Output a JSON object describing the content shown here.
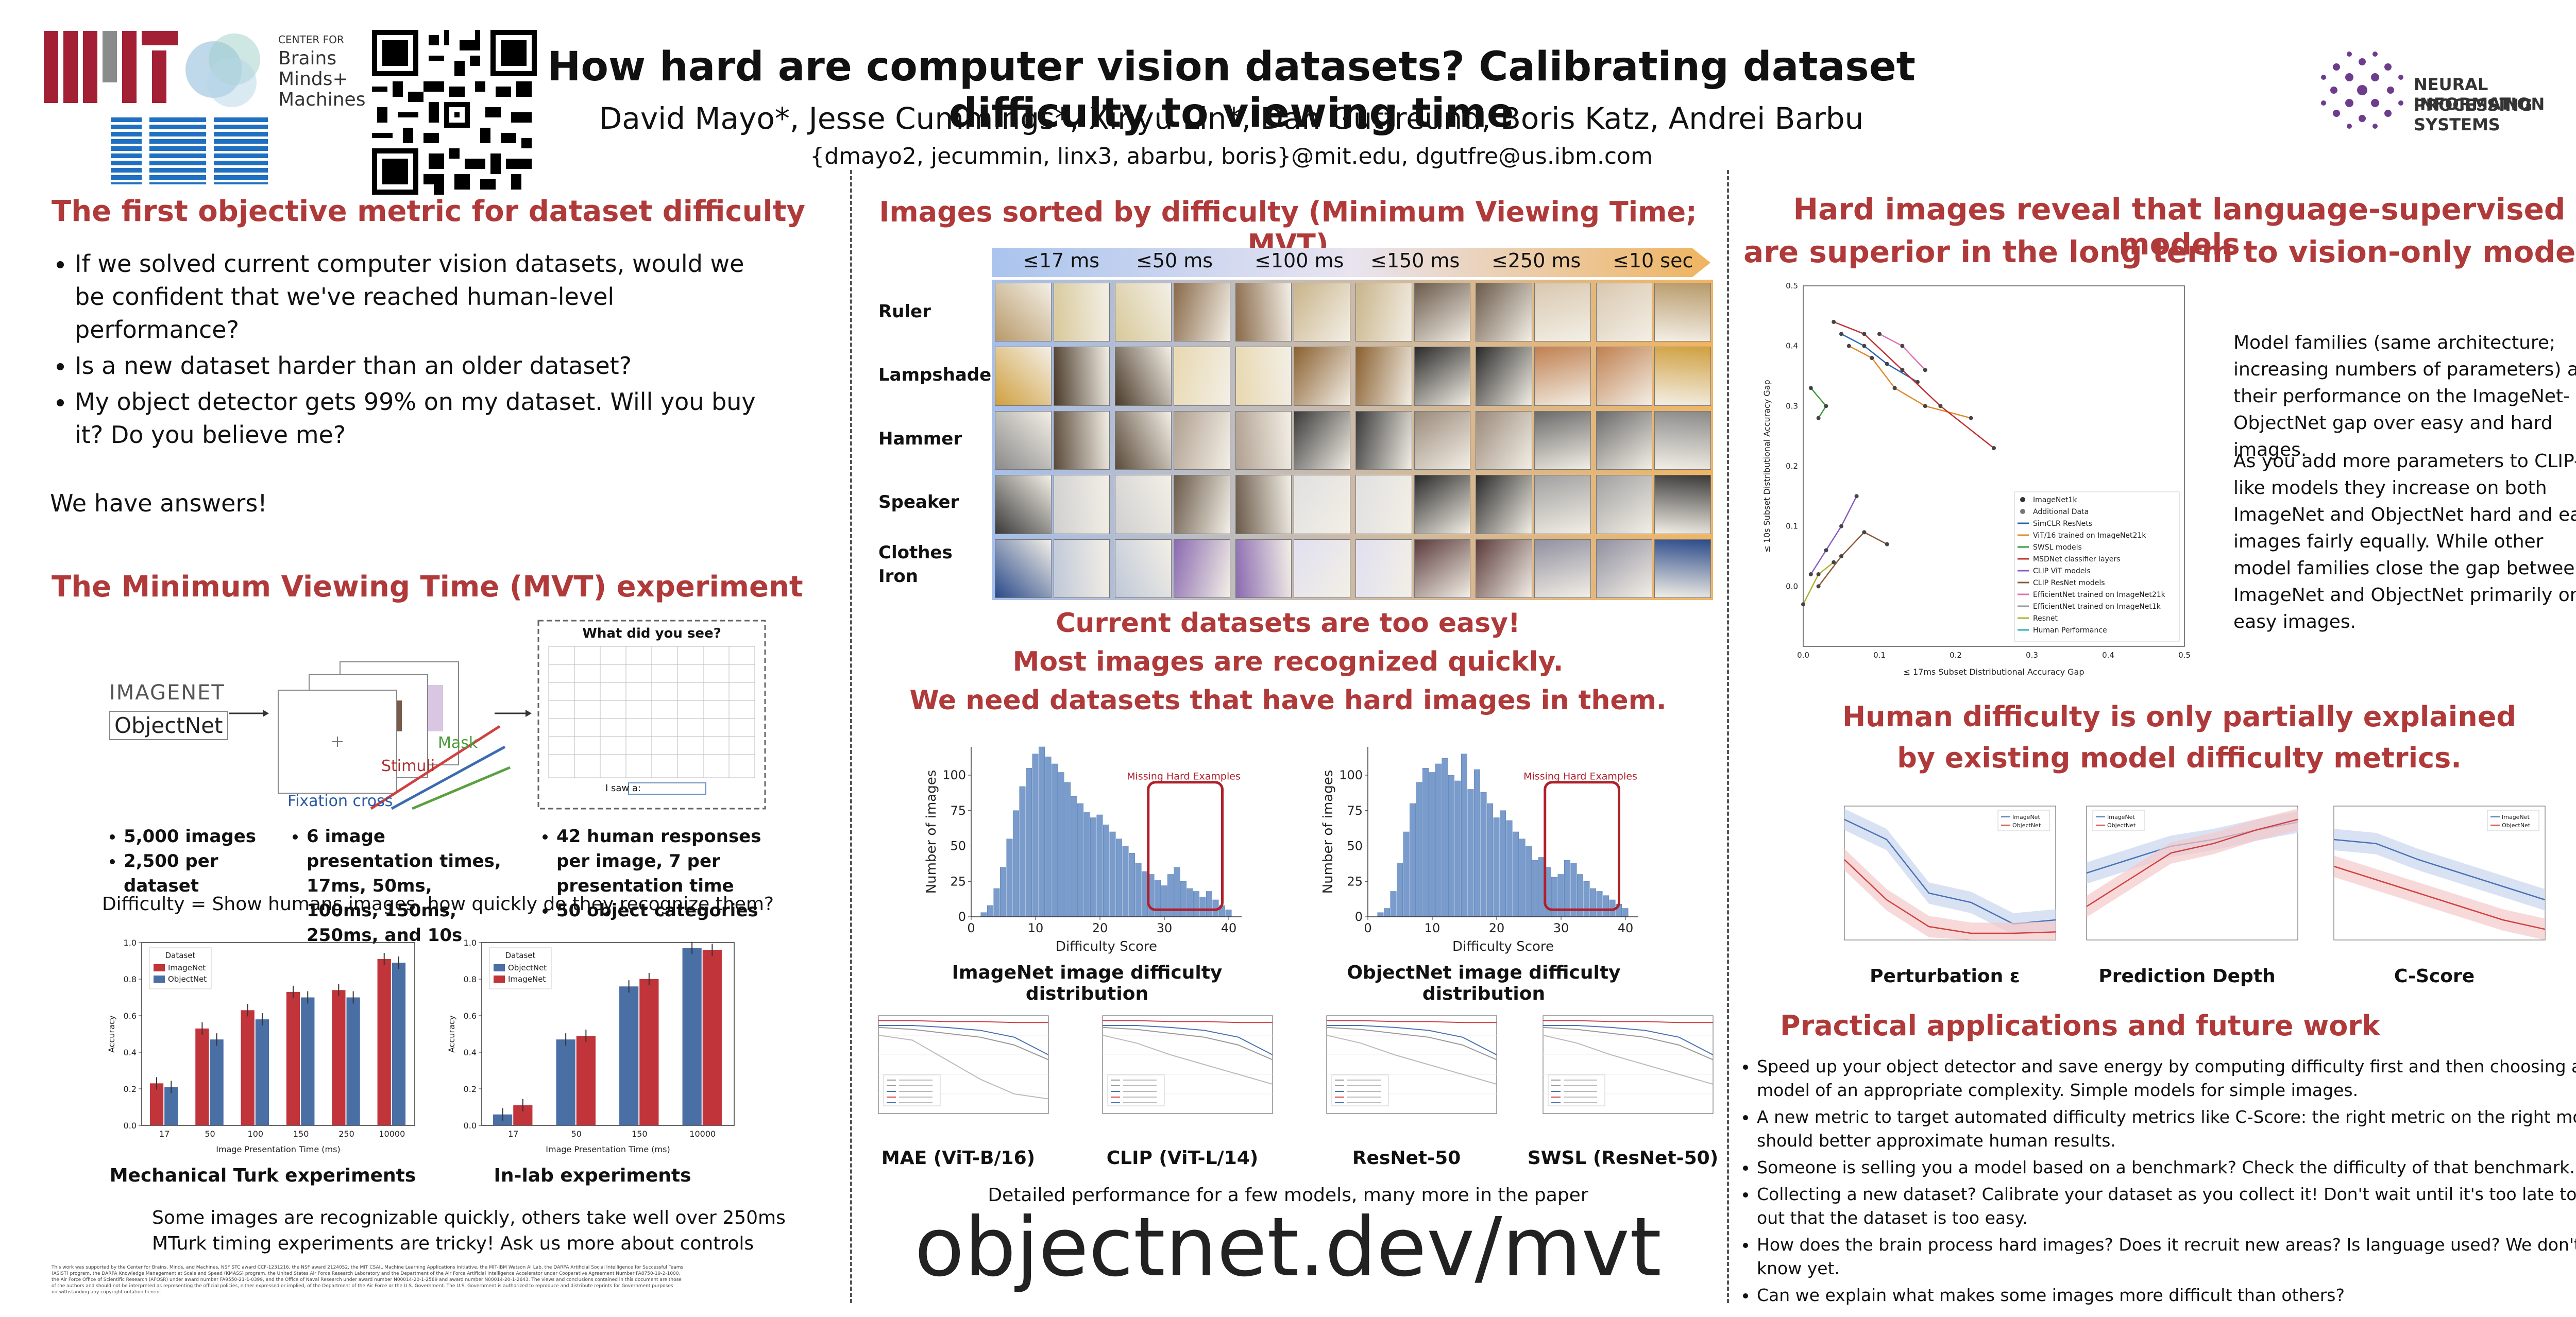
{
  "header": {
    "title": "How hard are computer vision datasets? Calibrating dataset difficulty to viewing time",
    "authors": "David Mayo*, Jesse Cummings*, Xinyu Lin*, Dan Gutfreund, Boris Katz, Andrei Barbu",
    "emails": "{dmayo2, jecummin, linx3, abarbu, boris}@mit.edu, dgutfre@us.ibm.com",
    "cbmm_lines": [
      "CENTER FOR",
      "Brains",
      "Minds+",
      "Machines"
    ],
    "mit_logo": "MIT",
    "ibm_logo": "IBM",
    "neurips_lines": [
      "NEURAL INFORMATION",
      "PROCESSING SYSTEMS"
    ]
  },
  "left": {
    "sec1_title": "The first objective metric for dataset difficulty",
    "bullets": [
      "If we solved current computer vision datasets, would we be confident that we've reached human-level performance?",
      "Is a new dataset harder than an older dataset?",
      "My object detector gets 99% on my dataset. Will you buy it? Do you believe me?"
    ],
    "answers": "We have answers!",
    "sec2_title": "The Minimum Viewing Time (MVT) experiment",
    "diagram": {
      "imagenet": "IMAGENET",
      "objectnet": "ObjectNet",
      "fixation": "Fixation cross",
      "stimuli": "Stimuli",
      "mask": "Mask",
      "question": "What did you see?",
      "type_prompt": "I saw a:"
    },
    "stats_col1": [
      "5,000 images",
      "2,500 per dataset"
    ],
    "stats_col2": [
      "6 image presentation times, 17ms, 50ms, 100ms, 150ms, 250ms, and 10s"
    ],
    "stats_col3": [
      "42 human responses per image, 7 per presentation time",
      "50 object categories"
    ],
    "difficulty_def": "Difficulty = Show humans images, how quickly do they recognize them?",
    "mturk_caption": "Mechanical Turk experiments",
    "inlab_caption": "In-lab experiments",
    "bottom_note1": "Some images are recognizable quickly, others take well over 250ms",
    "bottom_note2": "MTurk timing experiments are tricky! Ask us more about controls",
    "footnote": "This work was supported by the Center for Brains, Minds, and Machines, NSF STC award CCF-1231216, the NSF award 2124052, the MIT CSAIL Machine Learning Applications Initiative, the MIT-IBM Watson AI Lab, the DARPA Artificial Social Intelligence for Successful Teams (ASIST) program, the DARPA Knowledge Management at Scale and Speed (KMASS) program, the United States Air Force Research Laboratory and the Department of the Air Force Artificial Intelligence Accelerator under Cooperative Agreement Number FA8750-19-2-1000, the Air Force Office of Scientific Research (AFOSR) under award number FA9550-21-1-0399, and the Office of Naval Research under award number N00014-20-1-2589 and award number N00014-20-1-2643. The views and conclusions contained in this document are those of the authors and should not be interpreted as representing the official policies, either expressed or implied, of the Department of the Air Force or the U.S. Government. The U.S. Government is authorized to reproduce and distribute reprints for Government purposes notwithstanding any copyright notation herein."
  },
  "middle": {
    "sec_title": "Images sorted by difficulty (Minimum Viewing Time; MVT)",
    "mvt_labels": [
      "≤17 ms",
      "≤50 ms",
      "≤100 ms",
      "≤150 ms",
      "≤250 ms",
      "≤10 sec"
    ],
    "row_labels": [
      "Ruler",
      "Lampshade",
      "Hammer",
      "Speaker",
      "Clothes Iron"
    ],
    "too_easy": [
      "Current datasets are too easy!",
      "Most images are recognized quickly.",
      "We need datasets that have hard images in them."
    ],
    "missing_hard": "Missing Hard Examples",
    "hist_caption_imagenet": "ImageNet image difficulty distribution",
    "hist_caption_objectnet": "ObjectNet image difficulty distribution",
    "model_captions": [
      "MAE (ViT-B/16)",
      "CLIP (ViT-L/14)",
      "ResNet-50",
      "SWSL (ResNet-50)"
    ],
    "detailed_note": "Detailed performance for a few models, many more in the paper",
    "url": "objectnet.dev/mvt"
  },
  "right": {
    "sec1_title_lines": [
      "Hard images reveal that language-supervised models",
      "are superior in the long term to vision-only models."
    ],
    "para1": "Model families (same architecture; increasing numbers of parameters) and their performance on the ImageNet-ObjectNet gap over easy and hard images.",
    "para2": "As you add more parameters to CLIP-like models they increase on both ImageNet and ObjectNet hard and easy images fairly equally. While other model families close the gap between ImageNet and ObjectNet primarily on easy images.",
    "scatter_xlabel": "≤ 17ms Subset Distributional Accuracy Gap",
    "scatter_ylabel": "≤ 10s Subset Distributional Accuracy Gap",
    "scatter_legend": [
      {
        "label": "ImageNet1k",
        "color": "#333333"
      },
      {
        "label": "Additional Data",
        "color": "#777777"
      },
      {
        "label": "SimCLR ResNets",
        "color": "#2a66b0"
      },
      {
        "label": "ViT/16 trained on ImageNet21k",
        "color": "#e0892a"
      },
      {
        "label": "SWSL models",
        "color": "#3a9a3a"
      },
      {
        "label": "MSDNet classifier layers",
        "color": "#c03030"
      },
      {
        "label": "CLIP ViT models",
        "color": "#8a5cc0"
      },
      {
        "label": "CLIP ResNet models",
        "color": "#8a5a3a"
      },
      {
        "label": "EfficientNet trained on ImageNet21k",
        "color": "#e070b0"
      },
      {
        "label": "EfficientNet trained on ImageNet1k",
        "color": "#999999"
      },
      {
        "label": "Resnet",
        "color": "#b0b030"
      },
      {
        "label": "Human Performance",
        "color": "#30b0c0"
      }
    ],
    "sec2_title_lines": [
      "Human difficulty is only partially explained",
      "by existing model difficulty metrics."
    ],
    "metric_captions": [
      "Perturbation ε",
      "Prediction Depth",
      "C-Score"
    ],
    "metric_legend": [
      "ImageNet",
      "ObjectNet"
    ],
    "sec3_title": "Practical applications and future work",
    "future_bullets": [
      "Speed up your object detector and save energy by computing difficulty first and then choosing a model of an appropriate complexity. Simple models for simple images.",
      "A new metric to target automated difficulty metrics like C-Score: the right metric on the right model should better approximate human results.",
      "Someone is selling you a model based on a benchmark? Check the difficulty of that benchmark.",
      "Collecting a new dataset? Calibrate your dataset as you collect it! Don't wait until it's too late to find out that the dataset is too easy.",
      "How does the brain process hard images? Does it recruit new areas? Is language used? We don't know yet.",
      "Can we explain what makes some images more difficult than others?"
    ]
  },
  "colors": {
    "accent": "#b03a3a",
    "imagenet_bar": "#c0343a",
    "objectnet_bar": "#4a6fa5",
    "hist_bar": "#7a9ccc"
  },
  "chart_data": [
    {
      "type": "bar",
      "categories": [
        "17",
        "50",
        "100",
        "150",
        "250",
        "10000"
      ],
      "series": [
        {
          "name": "ImageNet",
          "values": [
            0.23,
            0.53,
            0.63,
            0.73,
            0.74,
            0.91
          ]
        },
        {
          "name": "ObjectNet",
          "values": [
            0.21,
            0.47,
            0.58,
            0.7,
            0.7,
            0.89
          ]
        }
      ],
      "legend_title": "Dataset",
      "xlabel": "Image Presentation Time (ms)",
      "ylabel": "Accuracy",
      "ylim": [
        0,
        1.0
      ],
      "yticks": [
        "0.0",
        "0.2",
        "0.4",
        "0.6",
        "0.8",
        "1.0"
      ]
    },
    {
      "type": "bar",
      "categories": [
        "17",
        "50",
        "150",
        "10000"
      ],
      "series": [
        {
          "name": "ObjectNet",
          "values": [
            0.06,
            0.47,
            0.76,
            0.97
          ]
        },
        {
          "name": "ImageNet",
          "values": [
            0.11,
            0.49,
            0.8,
            0.96
          ]
        }
      ],
      "legend_title": "Dataset",
      "xlabel": "Image Presentation Time (ms)",
      "ylabel": "Accuracy",
      "ylim": [
        0,
        1.0
      ],
      "yticks": [
        "0.0",
        "0.2",
        "0.4",
        "0.6",
        "0.8",
        "1.0"
      ]
    },
    {
      "type": "bar",
      "title": "ImageNet image difficulty distribution",
      "xlabel": "Difficulty Score",
      "ylabel": "Number of images",
      "xlim": [
        0,
        42
      ],
      "ylim": [
        0,
        120
      ],
      "xticks": [
        0,
        10,
        20,
        30,
        40
      ],
      "yticks": [
        0,
        25,
        50,
        75,
        100
      ],
      "x": [
        2,
        3,
        4,
        5,
        6,
        7,
        8,
        9,
        10,
        11,
        12,
        13,
        14,
        15,
        16,
        17,
        18,
        19,
        20,
        21,
        22,
        23,
        24,
        25,
        26,
        27,
        28,
        29,
        30,
        31,
        32,
        33,
        34,
        35,
        36,
        37,
        38,
        39,
        40
      ],
      "values": [
        3,
        8,
        20,
        35,
        55,
        75,
        92,
        105,
        115,
        120,
        113,
        108,
        102,
        95,
        85,
        80,
        74,
        70,
        72,
        65,
        60,
        55,
        50,
        45,
        38,
        32,
        30,
        26,
        22,
        30,
        35,
        25,
        20,
        18,
        14,
        18,
        12,
        8,
        5
      ]
    },
    {
      "type": "bar",
      "title": "ObjectNet image difficulty distribution",
      "xlabel": "Difficulty Score",
      "ylabel": "Number of images",
      "xlim": [
        0,
        42
      ],
      "ylim": [
        0,
        120
      ],
      "xticks": [
        0,
        10,
        20,
        30,
        40
      ],
      "yticks": [
        0,
        25,
        50,
        75,
        100
      ],
      "x": [
        2,
        3,
        4,
        5,
        6,
        7,
        8,
        9,
        10,
        11,
        12,
        13,
        14,
        15,
        16,
        17,
        18,
        19,
        20,
        21,
        22,
        23,
        24,
        25,
        26,
        27,
        28,
        29,
        30,
        31,
        32,
        33,
        34,
        35,
        36,
        37,
        38,
        39,
        40
      ],
      "values": [
        3,
        6,
        18,
        38,
        60,
        80,
        95,
        105,
        102,
        108,
        112,
        100,
        96,
        115,
        90,
        104,
        88,
        80,
        70,
        75,
        68,
        60,
        55,
        50,
        40,
        42,
        35,
        28,
        30,
        40,
        38,
        30,
        25,
        20,
        18,
        15,
        12,
        9,
        6
      ]
    }
  ]
}
